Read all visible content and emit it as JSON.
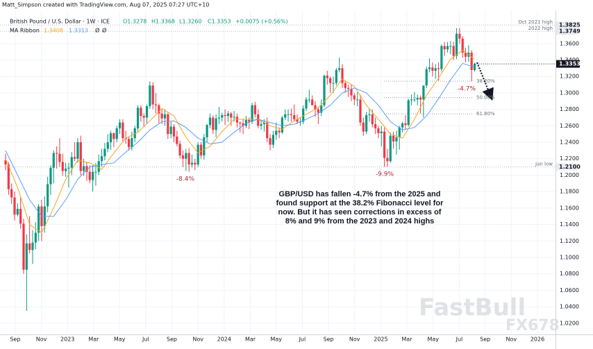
{
  "chart_data": {
    "type": "candlestick",
    "credit": "Matt_Simpson created with TradingView.com, Aug 07, 2025 07:27 UTC+10",
    "symbol": "British Pound / U.S. Dollar · 1W · ICE",
    "ohlc_text": [
      "O1.3278",
      "H1.3368",
      "L1.3260",
      "C1.3353",
      "+0.0075 (+0.56%)"
    ],
    "ma_legend": [
      "MA Ribbon",
      "1.3408",
      "1.3313",
      "Ø",
      "Ø"
    ],
    "up_color": "#089981",
    "down_color": "#f23645",
    "candles": [
      [
        1.218,
        1.226,
        1.206,
        1.213
      ],
      [
        1.213,
        1.216,
        1.176,
        1.183
      ],
      [
        1.183,
        1.19,
        1.165,
        1.173
      ],
      [
        1.173,
        1.18,
        1.145,
        1.152
      ],
      [
        1.152,
        1.166,
        1.15,
        1.159
      ],
      [
        1.159,
        1.173,
        1.135,
        1.141
      ],
      [
        1.141,
        1.147,
        1.08,
        1.085
      ],
      [
        1.085,
        1.128,
        1.035,
        1.117
      ],
      [
        1.117,
        1.15,
        1.105,
        1.109
      ],
      [
        1.109,
        1.133,
        1.092,
        1.118
      ],
      [
        1.118,
        1.143,
        1.11,
        1.13
      ],
      [
        1.13,
        1.165,
        1.12,
        1.162
      ],
      [
        1.162,
        1.17,
        1.12,
        1.138
      ],
      [
        1.138,
        1.174,
        1.13,
        1.162
      ],
      [
        1.162,
        1.198,
        1.155,
        1.189
      ],
      [
        1.189,
        1.212,
        1.176,
        1.209
      ],
      [
        1.209,
        1.23,
        1.19,
        1.227
      ],
      [
        1.227,
        1.235,
        1.208,
        1.226
      ],
      [
        1.226,
        1.245,
        1.21,
        1.216
      ],
      [
        1.216,
        1.226,
        1.199,
        1.205
      ],
      [
        1.205,
        1.215,
        1.198,
        1.208
      ],
      [
        1.208,
        1.215,
        1.185,
        1.209
      ],
      [
        1.209,
        1.228,
        1.2,
        1.222
      ],
      [
        1.222,
        1.24,
        1.217,
        1.22
      ],
      [
        1.22,
        1.245,
        1.215,
        1.24
      ],
      [
        1.24,
        1.248,
        1.2,
        1.205
      ],
      [
        1.205,
        1.22,
        1.199,
        1.211
      ],
      [
        1.211,
        1.216,
        1.193,
        1.204
      ],
      [
        1.204,
        1.212,
        1.19,
        1.194
      ],
      [
        1.194,
        1.212,
        1.18,
        1.204
      ],
      [
        1.204,
        1.215,
        1.187,
        1.204
      ],
      [
        1.204,
        1.225,
        1.2,
        1.217
      ],
      [
        1.217,
        1.232,
        1.21,
        1.223
      ],
      [
        1.223,
        1.239,
        1.218,
        1.232
      ],
      [
        1.232,
        1.25,
        1.228,
        1.24
      ],
      [
        1.24,
        1.254,
        1.231,
        1.251
      ],
      [
        1.251,
        1.252,
        1.234,
        1.244
      ],
      [
        1.244,
        1.26,
        1.24,
        1.257
      ],
      [
        1.257,
        1.268,
        1.25,
        1.264
      ],
      [
        1.264,
        1.268,
        1.24,
        1.245
      ],
      [
        1.245,
        1.254,
        1.238,
        1.244
      ],
      [
        1.244,
        1.247,
        1.23,
        1.234
      ],
      [
        1.234,
        1.253,
        1.23,
        1.245
      ],
      [
        1.245,
        1.26,
        1.24,
        1.257
      ],
      [
        1.257,
        1.285,
        1.253,
        1.282
      ],
      [
        1.282,
        1.285,
        1.265,
        1.272
      ],
      [
        1.272,
        1.275,
        1.259,
        1.27
      ],
      [
        1.27,
        1.286,
        1.263,
        1.284
      ],
      [
        1.284,
        1.314,
        1.281,
        1.309
      ],
      [
        1.309,
        1.313,
        1.28,
        1.286
      ],
      [
        1.286,
        1.3,
        1.275,
        1.285
      ],
      [
        1.285,
        1.287,
        1.263,
        1.275
      ],
      [
        1.275,
        1.28,
        1.262,
        1.269
      ],
      [
        1.269,
        1.28,
        1.26,
        1.274
      ],
      [
        1.274,
        1.276,
        1.244,
        1.25
      ],
      [
        1.25,
        1.265,
        1.245,
        1.259
      ],
      [
        1.259,
        1.262,
        1.24,
        1.247
      ],
      [
        1.247,
        1.254,
        1.235,
        1.238
      ],
      [
        1.238,
        1.242,
        1.22,
        1.224
      ],
      [
        1.224,
        1.23,
        1.21,
        1.22
      ],
      [
        1.22,
        1.232,
        1.205,
        1.227
      ],
      [
        1.227,
        1.233,
        1.204,
        1.213
      ],
      [
        1.213,
        1.225,
        1.209,
        1.215
      ],
      [
        1.215,
        1.22,
        1.206,
        1.213
      ],
      [
        1.213,
        1.24,
        1.21,
        1.237
      ],
      [
        1.237,
        1.24,
        1.22,
        1.224
      ],
      [
        1.224,
        1.25,
        1.219,
        1.246
      ],
      [
        1.246,
        1.262,
        1.24,
        1.261
      ],
      [
        1.261,
        1.275,
        1.257,
        1.27
      ],
      [
        1.27,
        1.273,
        1.25,
        1.255
      ],
      [
        1.255,
        1.274,
        1.246,
        1.269
      ],
      [
        1.269,
        1.283,
        1.262,
        1.27
      ],
      [
        1.27,
        1.276,
        1.265,
        1.273
      ],
      [
        1.273,
        1.28,
        1.261,
        1.272
      ],
      [
        1.272,
        1.278,
        1.265,
        1.275
      ],
      [
        1.275,
        1.277,
        1.26,
        1.27
      ],
      [
        1.27,
        1.278,
        1.265,
        1.271
      ],
      [
        1.271,
        1.275,
        1.258,
        1.264
      ],
      [
        1.264,
        1.265,
        1.252,
        1.263
      ],
      [
        1.263,
        1.268,
        1.25,
        1.26
      ],
      [
        1.26,
        1.272,
        1.257,
        1.267
      ],
      [
        1.267,
        1.27,
        1.256,
        1.265
      ],
      [
        1.265,
        1.288,
        1.262,
        1.285
      ],
      [
        1.285,
        1.289,
        1.27,
        1.274
      ],
      [
        1.274,
        1.28,
        1.257,
        1.26
      ],
      [
        1.26,
        1.267,
        1.255,
        1.262
      ],
      [
        1.262,
        1.268,
        1.253,
        1.264
      ],
      [
        1.264,
        1.27,
        1.24,
        1.245
      ],
      [
        1.245,
        1.25,
        1.23,
        1.237
      ],
      [
        1.237,
        1.254,
        1.233,
        1.249
      ],
      [
        1.249,
        1.264,
        1.243,
        1.254
      ],
      [
        1.254,
        1.258,
        1.245,
        1.252
      ],
      [
        1.252,
        1.272,
        1.25,
        1.27
      ],
      [
        1.27,
        1.28,
        1.267,
        1.274
      ],
      [
        1.274,
        1.28,
        1.265,
        1.274
      ],
      [
        1.274,
        1.281,
        1.265,
        1.273
      ],
      [
        1.273,
        1.286,
        1.265,
        1.268
      ],
      [
        1.268,
        1.274,
        1.262,
        1.265
      ],
      [
        1.265,
        1.27,
        1.26,
        1.265
      ],
      [
        1.265,
        1.285,
        1.262,
        1.281
      ],
      [
        1.281,
        1.295,
        1.278,
        1.292
      ],
      [
        1.292,
        1.304,
        1.288,
        1.292
      ],
      [
        1.292,
        1.297,
        1.285,
        1.285
      ],
      [
        1.285,
        1.29,
        1.271,
        1.28
      ],
      [
        1.28,
        1.283,
        1.262,
        1.276
      ],
      [
        1.276,
        1.292,
        1.272,
        1.285
      ],
      [
        1.285,
        1.322,
        1.283,
        1.321
      ],
      [
        1.321,
        1.327,
        1.31,
        1.318
      ],
      [
        1.318,
        1.32,
        1.3,
        1.312
      ],
      [
        1.312,
        1.32,
        1.3,
        1.312
      ],
      [
        1.312,
        1.33,
        1.309,
        1.328
      ],
      [
        1.328,
        1.343,
        1.325,
        1.33
      ],
      [
        1.33,
        1.335,
        1.306,
        1.312
      ],
      [
        1.312,
        1.315,
        1.3,
        1.306
      ],
      [
        1.306,
        1.31,
        1.295,
        1.305
      ],
      [
        1.305,
        1.31,
        1.29,
        1.297
      ],
      [
        1.297,
        1.3,
        1.285,
        1.292
      ],
      [
        1.292,
        1.301,
        1.284,
        1.292
      ],
      [
        1.292,
        1.298,
        1.26,
        1.264
      ],
      [
        1.264,
        1.27,
        1.248,
        1.253
      ],
      [
        1.253,
        1.277,
        1.25,
        1.273
      ],
      [
        1.273,
        1.281,
        1.265,
        1.274
      ],
      [
        1.274,
        1.28,
        1.258,
        1.262
      ],
      [
        1.262,
        1.27,
        1.25,
        1.257
      ],
      [
        1.257,
        1.26,
        1.245,
        1.251
      ],
      [
        1.251,
        1.26,
        1.235,
        1.253
      ],
      [
        1.253,
        1.258,
        1.21,
        1.221
      ],
      [
        1.221,
        1.232,
        1.21,
        1.217
      ],
      [
        1.217,
        1.252,
        1.215,
        1.248
      ],
      [
        1.248,
        1.253,
        1.232,
        1.241
      ],
      [
        1.241,
        1.254,
        1.225,
        1.246
      ],
      [
        1.246,
        1.26,
        1.231,
        1.258
      ],
      [
        1.258,
        1.265,
        1.252,
        1.263
      ],
      [
        1.263,
        1.273,
        1.255,
        1.261
      ],
      [
        1.261,
        1.293,
        1.259,
        1.291
      ],
      [
        1.291,
        1.298,
        1.285,
        1.292
      ],
      [
        1.292,
        1.301,
        1.289,
        1.292
      ],
      [
        1.292,
        1.298,
        1.285,
        1.294
      ],
      [
        1.294,
        1.297,
        1.275,
        1.292
      ],
      [
        1.292,
        1.308,
        1.27,
        1.309
      ],
      [
        1.309,
        1.332,
        1.306,
        1.329
      ],
      [
        1.329,
        1.342,
        1.325,
        1.331
      ],
      [
        1.331,
        1.337,
        1.32,
        1.327
      ],
      [
        1.327,
        1.335,
        1.317,
        1.33
      ],
      [
        1.33,
        1.337,
        1.315,
        1.329
      ],
      [
        1.329,
        1.359,
        1.326,
        1.357
      ],
      [
        1.357,
        1.362,
        1.345,
        1.353
      ],
      [
        1.353,
        1.362,
        1.349,
        1.357
      ],
      [
        1.357,
        1.363,
        1.347,
        1.357
      ],
      [
        1.357,
        1.362,
        1.34,
        1.345
      ],
      [
        1.345,
        1.3788,
        1.341,
        1.372
      ],
      [
        1.372,
        1.379,
        1.36,
        1.366
      ],
      [
        1.366,
        1.369,
        1.343,
        1.349
      ],
      [
        1.349,
        1.355,
        1.337,
        1.344
      ],
      [
        1.344,
        1.358,
        1.338,
        1.349
      ],
      [
        1.349,
        1.352,
        1.314,
        1.3278
      ],
      [
        1.3278,
        1.3368,
        1.326,
        1.3353
      ]
    ],
    "ma_ribbon": {
      "x": [
        0,
        4,
        8,
        12,
        16,
        20,
        24,
        28,
        32,
        36,
        40,
        44,
        48,
        52,
        56,
        60,
        64,
        68,
        72,
        76,
        80,
        84,
        88,
        92,
        96,
        100,
        104,
        108,
        112,
        116,
        120,
        124,
        128,
        132,
        136,
        140,
        144,
        148,
        152,
        156
      ],
      "series": [
        {
          "color": "#f5a623",
          "values": [
            1.22,
            1.185,
            1.14,
            1.13,
            1.16,
            1.195,
            1.218,
            1.215,
            1.207,
            1.227,
            1.245,
            1.252,
            1.266,
            1.281,
            1.272,
            1.246,
            1.227,
            1.235,
            1.253,
            1.268,
            1.268,
            1.268,
            1.26,
            1.256,
            1.266,
            1.274,
            1.282,
            1.297,
            1.317,
            1.308,
            1.285,
            1.268,
            1.25,
            1.245,
            1.268,
            1.297,
            1.318,
            1.341,
            1.352,
            1.3408
          ]
        },
        {
          "color": "#5b9cf6",
          "values": [
            1.23,
            1.2,
            1.17,
            1.15,
            1.15,
            1.17,
            1.195,
            1.21,
            1.213,
            1.215,
            1.228,
            1.24,
            1.255,
            1.265,
            1.266,
            1.258,
            1.245,
            1.238,
            1.24,
            1.252,
            1.263,
            1.268,
            1.264,
            1.26,
            1.262,
            1.268,
            1.275,
            1.285,
            1.3,
            1.306,
            1.3,
            1.285,
            1.265,
            1.255,
            1.258,
            1.272,
            1.293,
            1.316,
            1.336,
            1.3313
          ]
        }
      ]
    },
    "xlim": [
      -1.85,
      182.9
    ],
    "xticks": [
      {
        "value": 3.2,
        "label": "Sep"
      },
      {
        "value": 11.9,
        "label": "Nov"
      },
      {
        "value": 20.6,
        "label": "2023"
      },
      {
        "value": 29.3,
        "label": "Mar"
      },
      {
        "value": 37.9,
        "label": "May"
      },
      {
        "value": 46.6,
        "label": "Jul"
      },
      {
        "value": 55.3,
        "label": "Sep"
      },
      {
        "value": 64.0,
        "label": "Nov"
      },
      {
        "value": 72.7,
        "label": "2024"
      },
      {
        "value": 81.4,
        "label": "Mar"
      },
      {
        "value": 90.0,
        "label": "May"
      },
      {
        "value": 98.7,
        "label": "Jul"
      },
      {
        "value": 107.4,
        "label": "Sep"
      },
      {
        "value": 116.1,
        "label": "Nov"
      },
      {
        "value": 124.8,
        "label": "2025"
      },
      {
        "value": 133.5,
        "label": "Mar"
      },
      {
        "value": 142.2,
        "label": "May"
      },
      {
        "value": 150.9,
        "label": "Jul"
      },
      {
        "value": 159.5,
        "label": "Sep"
      },
      {
        "value": 168.2,
        "label": "Nov"
      },
      {
        "value": 176.9,
        "label": "2026"
      }
    ],
    "ylim": [
      1.008,
      1.413
    ],
    "yticks": [
      {
        "value": 1.02,
        "label": "1.0200"
      },
      {
        "value": 1.04,
        "label": "1.0400"
      },
      {
        "value": 1.06,
        "label": "1.0600"
      },
      {
        "value": 1.08,
        "label": "1.0800"
      },
      {
        "value": 1.1,
        "label": "1.1000"
      },
      {
        "value": 1.12,
        "label": "1.1200"
      },
      {
        "value": 1.14,
        "label": "1.1400"
      },
      {
        "value": 1.16,
        "label": "1.1600"
      },
      {
        "value": 1.18,
        "label": "1.1800"
      },
      {
        "value": 1.2,
        "label": "1.2000"
      },
      {
        "value": 1.22,
        "label": "1.2200"
      },
      {
        "value": 1.24,
        "label": "1.2400"
      },
      {
        "value": 1.26,
        "label": "1.2600"
      },
      {
        "value": 1.28,
        "label": "1.2800"
      },
      {
        "value": 1.3,
        "label": "1.3000"
      },
      {
        "value": 1.32,
        "label": "1.3200"
      },
      {
        "value": 1.34,
        "label": "1.3400"
      },
      {
        "value": 1.36,
        "label": "1.3600"
      }
    ],
    "grid": true,
    "levels": [
      {
        "value": 1.3825,
        "label": "Oct 2021 high",
        "tag": "1.3825"
      },
      {
        "value": 1.3749,
        "label": "2022 high",
        "tag": "1.3749"
      },
      {
        "value": 1.21,
        "label": "Jan low",
        "tag": "1.2100"
      }
    ],
    "last_price": {
      "value": 1.3353,
      "tag": "1.3353"
    },
    "fib_levels": [
      {
        "value": 1.3143,
        "label": "38.20%"
      },
      {
        "value": 1.2944,
        "label": "50.00%"
      },
      {
        "value": 1.2745,
        "label": "61.80%"
      }
    ],
    "annotations": [
      "-8.4%",
      "-9.9%",
      "-4.7%"
    ],
    "note": [
      "GBP/USD has fallen -4.7% from the 2025 and",
      "found support at the 38.2% Fibonacci level for",
      "now. But it has seen corrections in excess of",
      "8% and 9% from the 2023 and 2024 highs"
    ],
    "watermark": [
      "FastBull",
      "FX678"
    ]
  }
}
